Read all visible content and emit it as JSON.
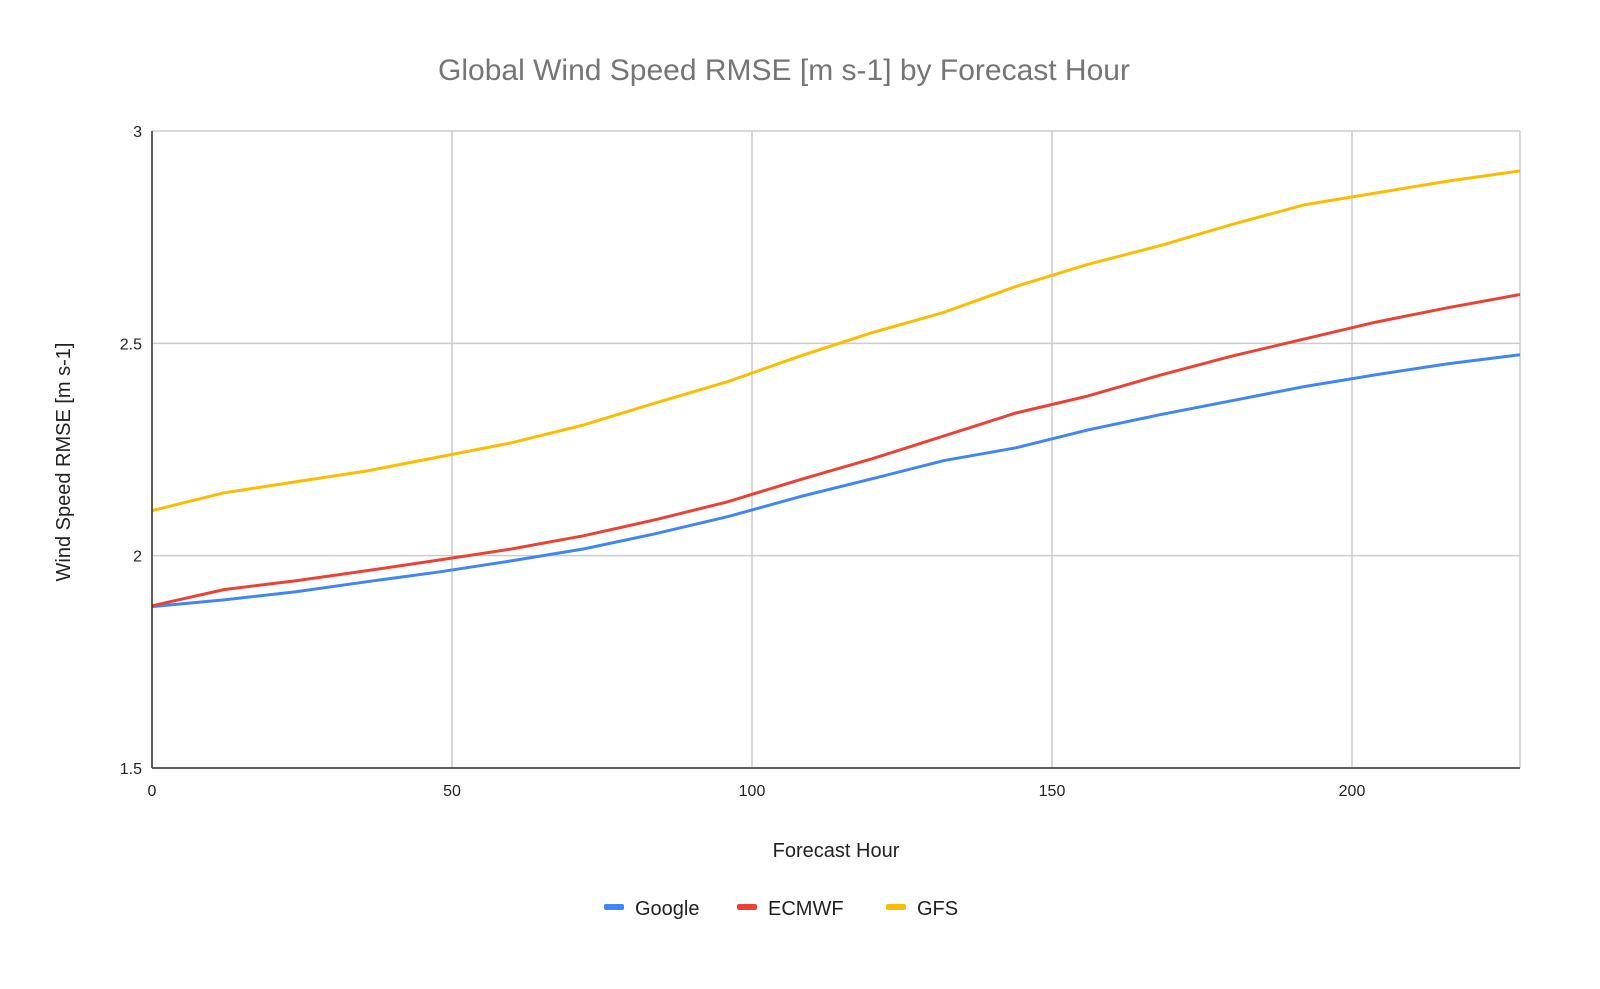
{
  "chart_data": {
    "type": "line",
    "title": "Global Wind Speed RMSE [m s-1] by Forecast Hour",
    "xlabel": "Forecast Hour",
    "ylabel": "Wind Speed RMSE [m s-1]",
    "xlim": [
      0,
      228
    ],
    "ylim": [
      1.5,
      3
    ],
    "xticks": [
      "0",
      "50",
      "100",
      "150",
      "200"
    ],
    "yticks": [
      "1.5",
      "2",
      "2.5",
      "3"
    ],
    "grid": true,
    "legend_position": "bottom",
    "x": [
      0,
      12,
      24,
      36,
      48,
      60,
      72,
      84,
      96,
      108,
      120,
      132,
      144,
      156,
      168,
      180,
      192,
      204,
      216,
      228
    ],
    "series": [
      {
        "name": "Google",
        "color": "#4285f4",
        "values": [
          1.88,
          1.896,
          1.915,
          1.939,
          1.962,
          1.988,
          2.016,
          2.052,
          2.092,
          2.139,
          2.181,
          2.224,
          2.254,
          2.296,
          2.332,
          2.365,
          2.398,
          2.426,
          2.452,
          2.473
        ]
      },
      {
        "name": "ECMWF",
        "color": "#ea4335",
        "values": [
          1.882,
          1.92,
          1.941,
          1.965,
          1.99,
          2.016,
          2.047,
          2.085,
          2.127,
          2.179,
          2.228,
          2.282,
          2.336,
          2.376,
          2.425,
          2.47,
          2.51,
          2.55,
          2.584,
          2.615
        ]
      },
      {
        "name": "GFS",
        "color": "#fbbc04",
        "values": [
          2.106,
          2.148,
          2.174,
          2.2,
          2.233,
          2.266,
          2.308,
          2.36,
          2.41,
          2.47,
          2.525,
          2.573,
          2.634,
          2.686,
          2.73,
          2.78,
          2.826,
          2.854,
          2.882,
          2.906
        ]
      }
    ]
  }
}
